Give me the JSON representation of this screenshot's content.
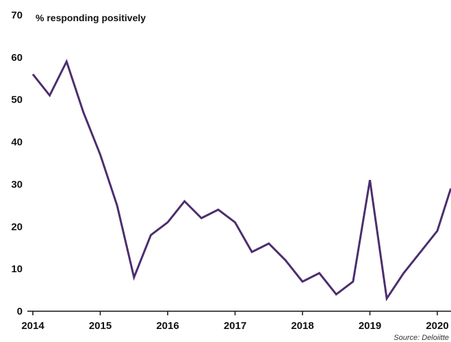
{
  "chart_data": {
    "type": "line",
    "ylabel": "% responding positively",
    "source": "Source: Deloiitte",
    "ylim": [
      0,
      70
    ],
    "yticks": [
      0,
      10,
      20,
      30,
      40,
      50,
      60,
      70
    ],
    "xlim": [
      2014,
      2020.2
    ],
    "xticks": [
      "2014",
      "2015",
      "2016",
      "2017",
      "2018",
      "2019",
      "2020"
    ],
    "grid": false,
    "line_color": "#4b2e6e",
    "series": [
      {
        "x": [
          2014.0,
          2014.25,
          2014.5,
          2014.75,
          2015.0,
          2015.25,
          2015.5,
          2015.75,
          2016.0,
          2016.25,
          2016.5,
          2016.75,
          2017.0,
          2017.25,
          2017.5,
          2017.75,
          2018.0,
          2018.25,
          2018.5,
          2018.75,
          2019.0,
          2019.25,
          2019.5,
          2019.75,
          2020.0,
          2020.2
        ],
        "y": [
          56,
          51,
          59,
          47,
          37,
          25,
          8,
          18,
          21,
          26,
          22,
          24,
          21,
          14,
          16,
          12,
          7,
          9,
          4,
          7,
          31,
          3,
          9,
          14,
          19,
          29
        ]
      }
    ]
  }
}
